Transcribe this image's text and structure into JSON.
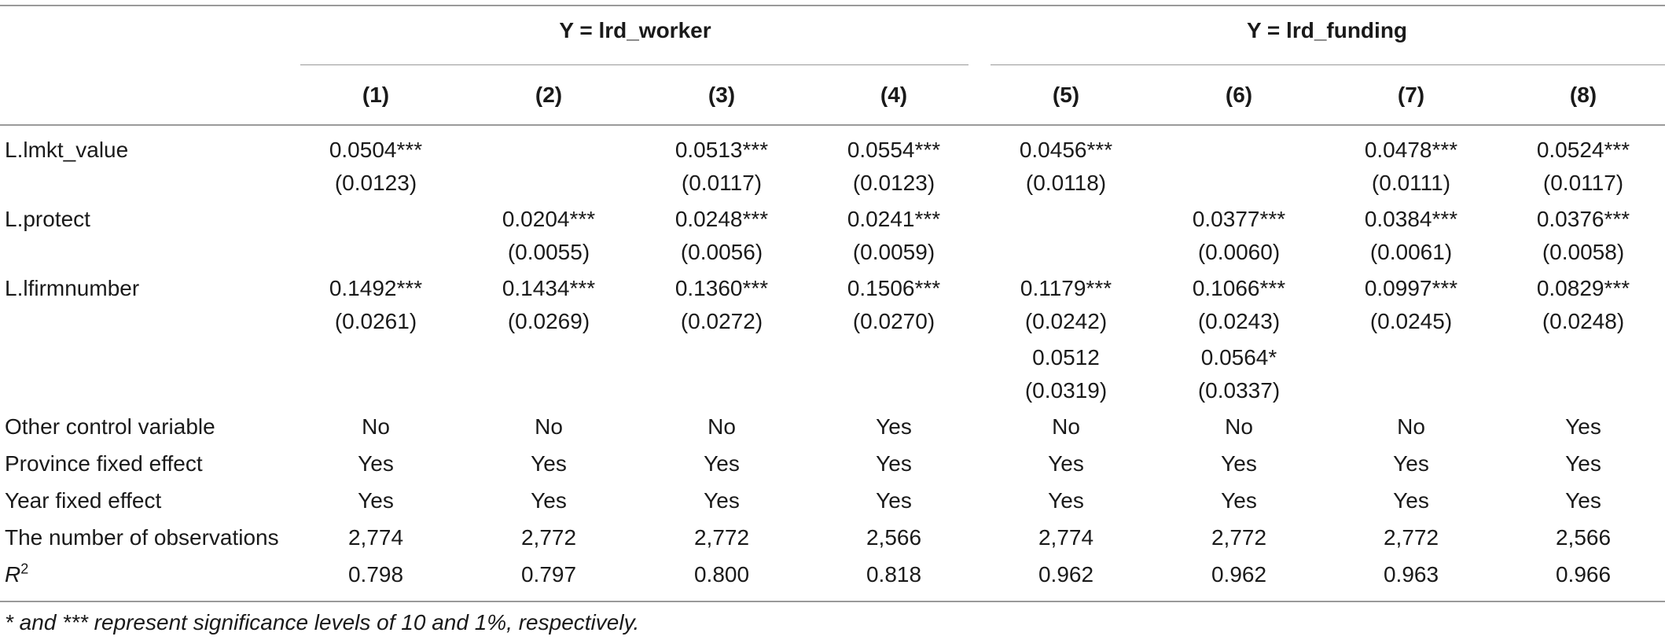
{
  "table": {
    "group_headers": [
      "Y = lrd_worker",
      "Y = lrd_funding"
    ],
    "col_headers": [
      "(1)",
      "(2)",
      "(3)",
      "(4)",
      "(5)",
      "(6)",
      "(7)",
      "(8)"
    ],
    "coef_rows": [
      {
        "label": "L.lmkt_value",
        "cells": [
          [
            "0.0504***",
            "(0.0123)"
          ],
          null,
          [
            "0.0513***",
            "(0.0117)"
          ],
          [
            "0.0554***",
            "(0.0123)"
          ],
          [
            "0.0456***",
            "(0.0118)"
          ],
          null,
          [
            "0.0478***",
            "(0.0111)"
          ],
          [
            "0.0524***",
            "(0.0117)"
          ]
        ]
      },
      {
        "label": "L.protect",
        "cells": [
          null,
          [
            "0.0204***",
            "(0.0055)"
          ],
          [
            "0.0248***",
            "(0.0056)"
          ],
          [
            "0.0241***",
            "(0.0059)"
          ],
          null,
          [
            "0.0377***",
            "(0.0060)"
          ],
          [
            "0.0384***",
            "(0.0061)"
          ],
          [
            "0.0376***",
            "(0.0058)"
          ]
        ]
      },
      {
        "label": "L.lfirmnumber",
        "cells": [
          [
            "0.1492***",
            "(0.0261)"
          ],
          [
            "0.1434***",
            "(0.0269)"
          ],
          [
            "0.1360***",
            "(0.0272)"
          ],
          [
            "0.1506***",
            "(0.0270)"
          ],
          [
            "0.1179***",
            "(0.0242)"
          ],
          [
            "0.1066***",
            "(0.0243)"
          ],
          [
            "0.0997***",
            "(0.0245)"
          ],
          [
            "0.0829***",
            "(0.0248)"
          ]
        ]
      },
      {
        "label": "",
        "cells": [
          null,
          null,
          null,
          null,
          [
            "0.0512",
            "(0.0319)"
          ],
          [
            "0.0564*",
            "(0.0337)"
          ],
          null,
          null
        ]
      }
    ],
    "stat_rows": [
      {
        "label": "Other control variable",
        "cells": [
          "No",
          "No",
          "No",
          "Yes",
          "No",
          "No",
          "No",
          "Yes"
        ]
      },
      {
        "label": "Province fixed effect",
        "cells": [
          "Yes",
          "Yes",
          "Yes",
          "Yes",
          "Yes",
          "Yes",
          "Yes",
          "Yes"
        ]
      },
      {
        "label": "Year fixed effect",
        "cells": [
          "Yes",
          "Yes",
          "Yes",
          "Yes",
          "Yes",
          "Yes",
          "Yes",
          "Yes"
        ]
      },
      {
        "label": "The number of observations",
        "cells": [
          "2,774",
          "2,772",
          "2,772",
          "2,566",
          "2,774",
          "2,772",
          "2,772",
          "2,566"
        ]
      }
    ],
    "r2_row": {
      "label_main": "R",
      "label_sup": "2",
      "cells": [
        "0.798",
        "0.797",
        "0.800",
        "0.818",
        "0.962",
        "0.962",
        "0.963",
        "0.966"
      ]
    },
    "footnote": "* and *** represent significance levels of 10 and 1%, respectively."
  }
}
